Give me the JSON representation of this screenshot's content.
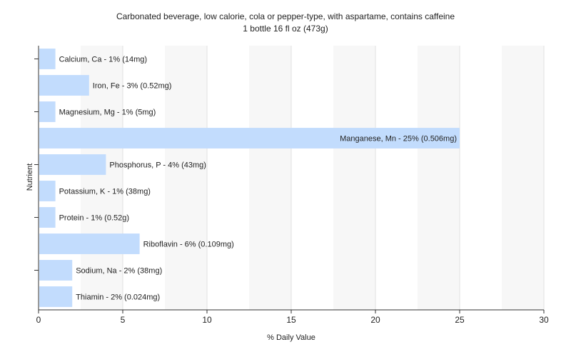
{
  "chart_data": {
    "type": "bar",
    "orientation": "horizontal",
    "title": "Carbonated beverage, low calorie, cola or pepper-type, with aspartame, contains caffeine",
    "subtitle": "1 bottle 16 fl oz (473g)",
    "xlabel": "% Daily Value",
    "ylabel": "Nutrient",
    "xlim": [
      0,
      30
    ],
    "xticks": [
      0,
      5,
      10,
      15,
      20,
      25,
      30
    ],
    "grid": true,
    "bar_color": "#c2dcfd",
    "categories": [
      "Calcium, Ca",
      "Iron, Fe",
      "Magnesium, Mg",
      "Manganese, Mn",
      "Phosphorus, P",
      "Potassium, K",
      "Protein",
      "Riboflavin",
      "Sodium, Na",
      "Thiamin"
    ],
    "values": [
      1,
      3,
      1,
      25,
      4,
      1,
      1,
      6,
      2,
      2
    ],
    "labels": [
      "Calcium, Ca - 1% (14mg)",
      "Iron, Fe - 3% (0.52mg)",
      "Magnesium, Mg - 1% (5mg)",
      "Manganese, Mn - 25% (0.506mg)",
      "Phosphorus, P - 4% (43mg)",
      "Potassium, K - 1% (38mg)",
      "Protein - 1% (0.52g)",
      "Riboflavin - 6% (0.109mg)",
      "Sodium, Na - 2% (38mg)",
      "Thiamin - 2% (0.024mg)"
    ]
  }
}
